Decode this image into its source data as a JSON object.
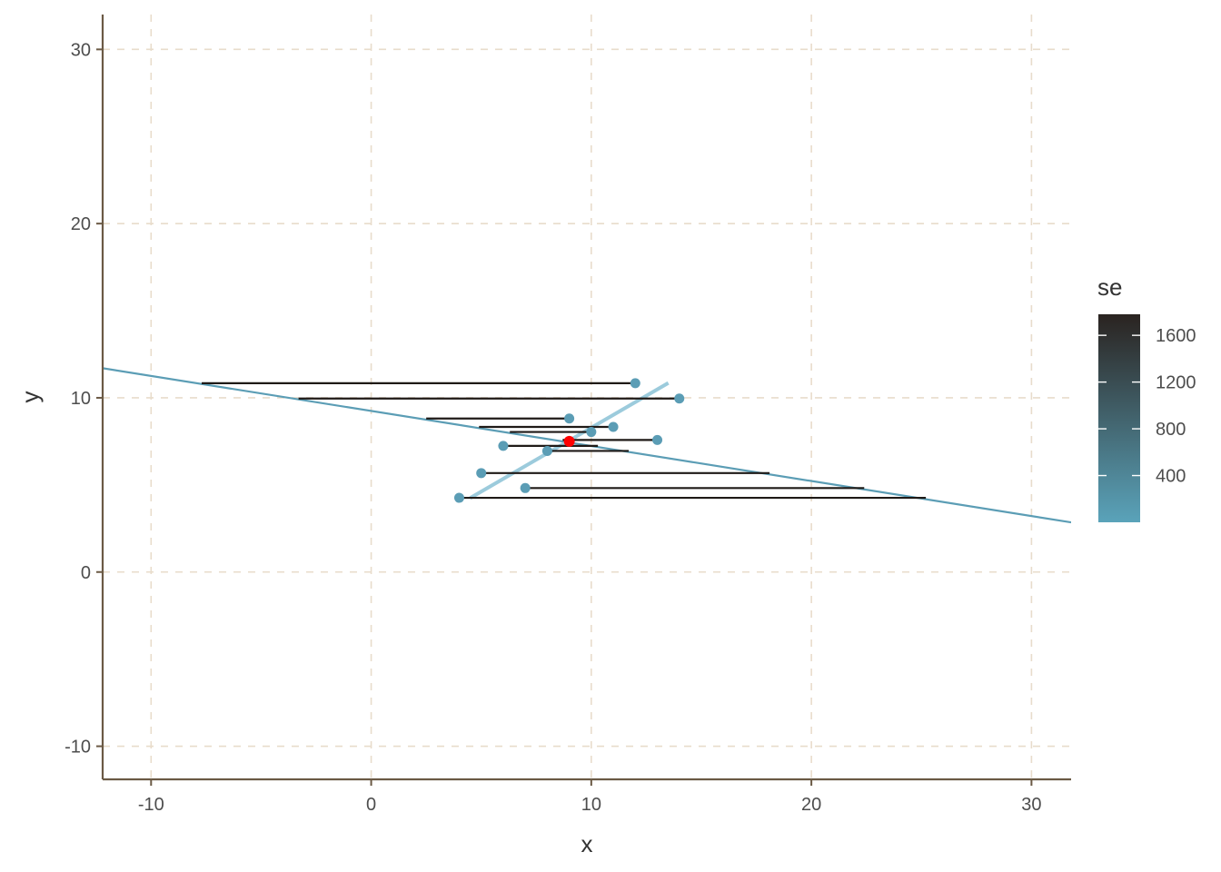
{
  "chart_data": {
    "type": "scatter",
    "title": "",
    "xlabel": "x",
    "ylabel": "y",
    "xlim": [
      -12.2,
      31.8
    ],
    "ylim": [
      -11.9,
      32.0
    ],
    "x_ticks": [
      -10,
      0,
      10,
      20,
      30
    ],
    "y_ticks": [
      -10,
      0,
      10,
      20,
      30
    ],
    "grid": true,
    "colors": {
      "grid": "#e8dccb",
      "axis": "#6b5a45",
      "point": "#5b9db5",
      "highlight_point": "#ff0000",
      "segment": "#1f1a17",
      "ols_line": "#9ccbdc",
      "reference_line": "#5b9db5",
      "gradient_low": "#5aa3ba",
      "gradient_high": "#2a2320"
    },
    "points": [
      {
        "x": 4,
        "y": 4.26
      },
      {
        "x": 5,
        "y": 5.68
      },
      {
        "x": 6,
        "y": 7.24
      },
      {
        "x": 7,
        "y": 4.82
      },
      {
        "x": 8,
        "y": 6.95
      },
      {
        "x": 9,
        "y": 8.81
      },
      {
        "x": 10,
        "y": 8.04
      },
      {
        "x": 11,
        "y": 8.33
      },
      {
        "x": 12,
        "y": 10.84
      },
      {
        "x": 13,
        "y": 7.58
      },
      {
        "x": 14,
        "y": 9.96
      }
    ],
    "highlight_point": {
      "x": 9.0,
      "y": 7.5
    },
    "segments": [
      {
        "x_from": 4,
        "x_to": 25.2,
        "y": 4.26
      },
      {
        "x_from": 5,
        "x_to": 18.1,
        "y": 5.68
      },
      {
        "x_from": 6,
        "x_to": 10.3,
        "y": 7.24
      },
      {
        "x_from": 7,
        "x_to": 22.4,
        "y": 4.82
      },
      {
        "x_from": 8,
        "x_to": 11.7,
        "y": 6.95
      },
      {
        "x_from": 9,
        "x_to": 2.5,
        "y": 8.81
      },
      {
        "x_from": 10,
        "x_to": 6.3,
        "y": 8.04
      },
      {
        "x_from": 11,
        "x_to": 4.9,
        "y": 8.33
      },
      {
        "x_from": 12,
        "x_to": -7.7,
        "y": 10.84
      },
      {
        "x_from": 13,
        "x_to": 8.7,
        "y": 7.58
      },
      {
        "x_from": 14,
        "x_to": -3.3,
        "y": 9.96
      }
    ],
    "ols_line": {
      "x_from": 4.5,
      "y_from": 4.25,
      "x_to": 13.5,
      "y_to": 10.85
    },
    "reference_line": {
      "x_from": -12.2,
      "y_from": 11.7,
      "x_to": 31.8,
      "y_to": 2.85
    },
    "legend": {
      "title": "se",
      "position": "right",
      "labels": [
        "400",
        "800",
        "1200",
        "1600"
      ],
      "values": [
        400,
        800,
        1200,
        1600
      ],
      "range": [
        0,
        1780
      ]
    }
  }
}
